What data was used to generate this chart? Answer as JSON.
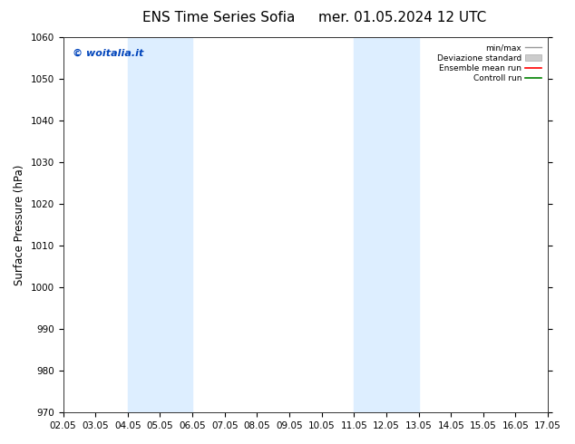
{
  "title": "ENS Time Series Sofia",
  "title2": "mer. 01.05.2024 12 UTC",
  "ylabel": "Surface Pressure (hPa)",
  "ylim": [
    970,
    1060
  ],
  "yticks": [
    970,
    980,
    990,
    1000,
    1010,
    1020,
    1030,
    1040,
    1050,
    1060
  ],
  "xlabels": [
    "02.05",
    "03.05",
    "04.05",
    "05.05",
    "06.05",
    "07.05",
    "08.05",
    "09.05",
    "10.05",
    "11.05",
    "12.05",
    "13.05",
    "14.05",
    "15.05",
    "16.05",
    "17.05"
  ],
  "xvals": [
    0,
    1,
    2,
    3,
    4,
    5,
    6,
    7,
    8,
    9,
    10,
    11,
    12,
    13,
    14,
    15
  ],
  "shade_bands": [
    {
      "xstart": 2,
      "xend": 4
    },
    {
      "xstart": 9,
      "xend": 11
    }
  ],
  "shade_color": "#ddeeff",
  "bg_color": "#ffffff",
  "watermark": "© woitalia.it",
  "watermark_color": "#0044bb",
  "legend_items": [
    {
      "label": "min/max",
      "color": "#999999",
      "type": "line"
    },
    {
      "label": "Deviazione standard",
      "color": "#cccccc",
      "type": "fill"
    },
    {
      "label": "Ensemble mean run",
      "color": "#ff0000",
      "type": "line"
    },
    {
      "label": "Controll run",
      "color": "#008000",
      "type": "line"
    }
  ],
  "title_fontsize": 11,
  "tick_fontsize": 7.5,
  "ylabel_fontsize": 8.5,
  "watermark_fontsize": 8
}
